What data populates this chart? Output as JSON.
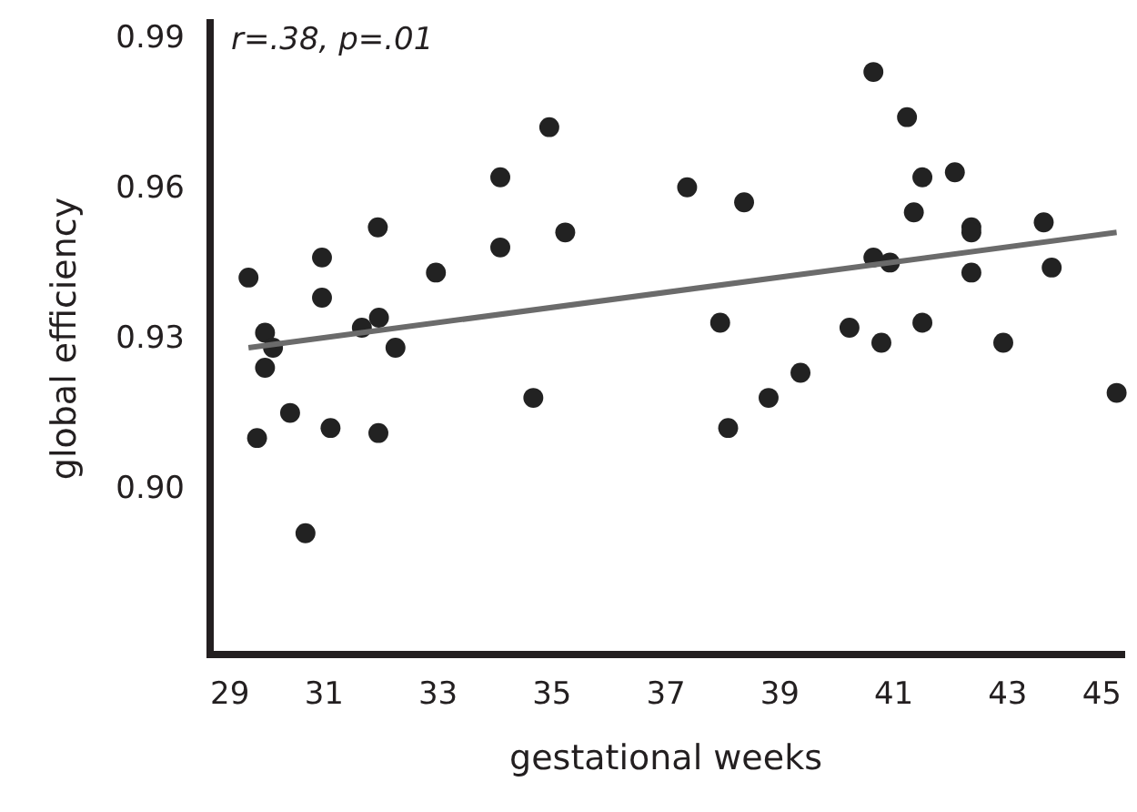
{
  "chart_data": {
    "type": "scatter",
    "xlabel": "gestational weeks",
    "ylabel": "global efficiency",
    "annotations": [
      "r=.38, p=.01"
    ],
    "xlim": [
      29,
      45
    ],
    "xticks": [
      29,
      31,
      33,
      35,
      37,
      39,
      41,
      43,
      45
    ],
    "ylim": [
      0.867,
      0.993
    ],
    "yticks": [
      {
        "value": 0.9,
        "label": "0.90"
      },
      0.93,
      0.96,
      0.99
    ],
    "grid": false,
    "marker": "circle",
    "series": [
      {
        "color": "#222222",
        "x": [
          29.69,
          29.98,
          30.12,
          29.98,
          29.84,
          30.42,
          30.69,
          30.98,
          30.98,
          31.13,
          31.68,
          31.98,
          31.96,
          32.27,
          31.97,
          32.98,
          34.11,
          34.11,
          34.69,
          34.97,
          35.25,
          37.39,
          38.39,
          37.97,
          38.11,
          38.82,
          39.38,
          40.24,
          40.66,
          40.66,
          40.95,
          40.8,
          41.25,
          41.37,
          41.52,
          41.52,
          42.09,
          42.38,
          42.38,
          42.38,
          42.94,
          43.65,
          43.79,
          44.93
        ],
        "values": [
          0.942,
          0.931,
          0.928,
          0.924,
          0.91,
          0.915,
          0.891,
          0.946,
          0.938,
          0.912,
          0.932,
          0.934,
          0.952,
          0.928,
          0.911,
          0.943,
          0.962,
          0.948,
          0.918,
          0.972,
          0.951,
          0.96,
          0.957,
          0.933,
          0.912,
          0.918,
          0.923,
          0.932,
          0.983,
          0.946,
          0.945,
          0.929,
          0.974,
          0.955,
          0.962,
          0.933,
          0.963,
          0.952,
          0.951,
          0.943,
          0.929,
          0.953,
          0.944,
          0.919
        ]
      },
      {
        "type": "line",
        "color": "#6b6b6b",
        "x": [
          29.69,
          44.93
        ],
        "values": [
          0.928,
          0.951
        ],
        "marker": "none"
      }
    ]
  }
}
